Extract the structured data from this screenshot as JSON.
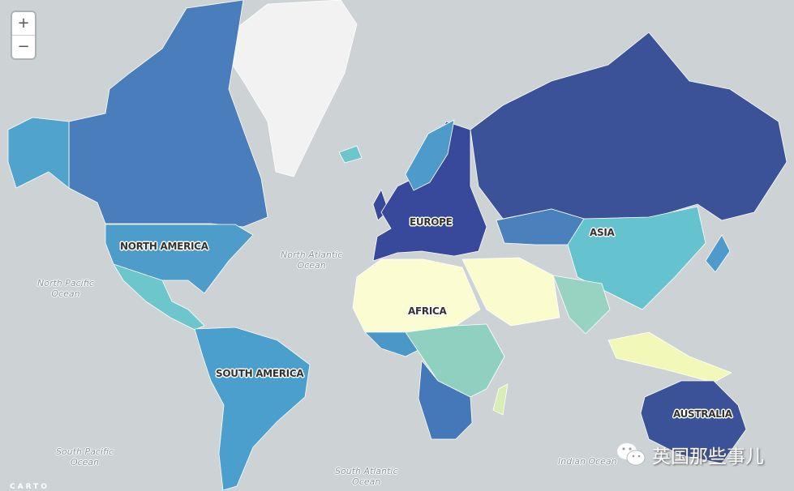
{
  "map": {
    "colors": {
      "ocean": "#cdd2d5",
      "greenland": "#f2f2f2",
      "canada": "#4a7dbb",
      "alaska": "#4fa3cc",
      "usa": "#4d9cca",
      "mexico": "#6cc6cc",
      "south_america": "#4a9fcc",
      "europe": "#38489a",
      "scandinavia": "#4d9acb",
      "russia": "#3b5299",
      "kazakhstan": "#4a80bb",
      "china": "#65c2cf",
      "india": "#97d3c0",
      "middle_east": "#fbfcce",
      "north_africa": "#fbfcd2",
      "sub_saharan": "#8fd0c1",
      "central_africa": "#4a97c8",
      "southern_africa": "#4578b8",
      "southeast_asia": "#f2f8b8",
      "australia": "#3b5299",
      "japan": "#4d9acb",
      "madagascar": "#d8eeb5",
      "iceland": "#6cc6cc"
    }
  },
  "labels": {
    "continents": [
      "NORTH AMERICA",
      "EUROPE",
      "ASIA",
      "AFRICA",
      "SOUTH AMERICA",
      "AUSTRALIA"
    ],
    "oceans": [
      {
        "line1": "North Atlantic",
        "line2": "Ocean"
      },
      {
        "line1": "North Pacific",
        "line2": "Ocean"
      },
      {
        "line1": "South Pacific",
        "line2": "Ocean"
      },
      {
        "line1": "South Atlantic",
        "line2": "Ocean"
      },
      {
        "line1": "Indian Ocean",
        "line2": ""
      }
    ]
  },
  "controls": {
    "zoom_in": "+",
    "zoom_out": "−"
  },
  "attribution": "CARTO",
  "watermark": {
    "icon": "wechat-icon",
    "text": "英国那些事儿"
  }
}
